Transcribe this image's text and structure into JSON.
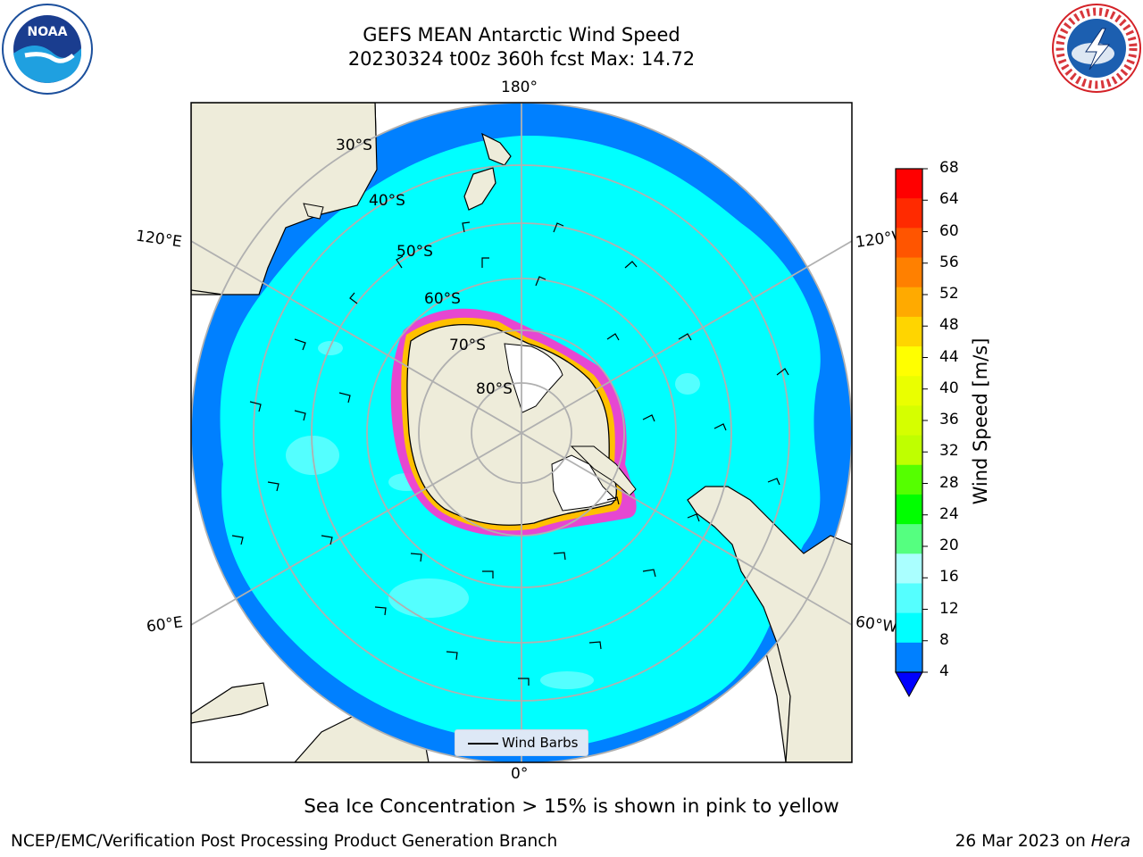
{
  "title": {
    "line1": "GEFS MEAN Antarctic Wind Speed",
    "line2": "20230324 t00z 360h fcst   Max: 14.72"
  },
  "logos": {
    "left": "noaa-logo",
    "right": "nws-logo"
  },
  "map": {
    "projection": "south-polar-stereographic",
    "longitude_labels": {
      "top": "180°",
      "bottom": "0°",
      "upper_left": "120°E",
      "upper_right": "120°W",
      "lower_left": "60°E",
      "lower_right": "60°W"
    },
    "latitude_labels": [
      "30°S",
      "40°S",
      "50°S",
      "60°S",
      "70°S",
      "80°S"
    ],
    "legend_label": "Wind Barbs",
    "colors": {
      "land": "#eeecda",
      "wind_4_8": "#0080ff",
      "wind_8_12": "#00ffff",
      "wind_12_16": "#54ffff",
      "sea_ice": "#ff33cc",
      "ice_edge": "#ffc000"
    }
  },
  "colorbar": {
    "title": "Wind Speed [m/s]",
    "ticks": [
      "68",
      "64",
      "60",
      "56",
      "52",
      "48",
      "44",
      "40",
      "36",
      "32",
      "28",
      "24",
      "20",
      "16",
      "12",
      "8",
      "4"
    ],
    "colors_top_to_bottom": [
      "#ff0000",
      "#ff2a00",
      "#ff5500",
      "#ff8000",
      "#ffaa00",
      "#ffd500",
      "#ffff00",
      "#eaff00",
      "#d5ff00",
      "#bfff00",
      "#55ff00",
      "#00ff00",
      "#55ff80",
      "#aaffff",
      "#55ffff",
      "#00ffff",
      "#0080ff"
    ],
    "extend_color": "#0000ff"
  },
  "caption": "Sea Ice Concentration > 15% is shown in pink to yellow",
  "footer": {
    "left": "NCEP/EMC/Verification Post Processing Product Generation Branch",
    "right_prefix": "26 Mar 2023 on ",
    "right_host": "Hera"
  }
}
